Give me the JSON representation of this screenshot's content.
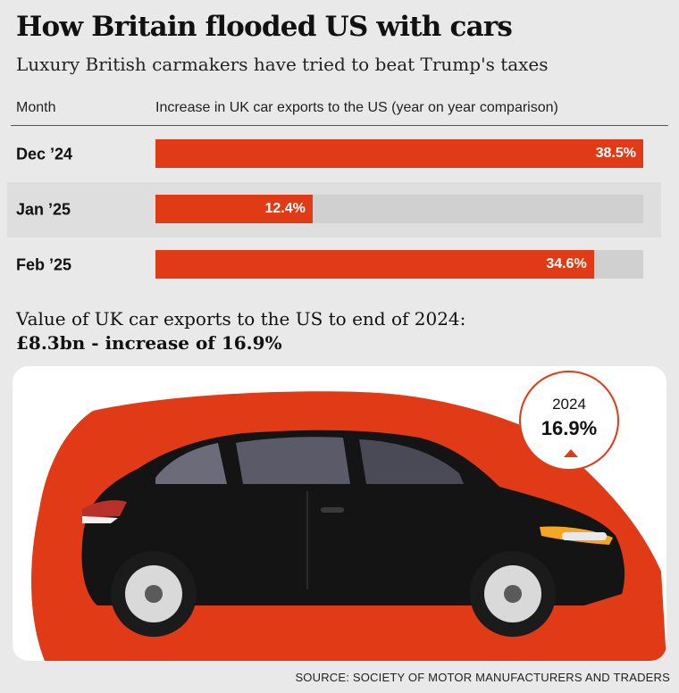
{
  "header": {
    "title": "How Britain flooded US with cars",
    "subtitle": "Luxury British carmakers have tried to beat Trump's taxes"
  },
  "table_header": {
    "month": "Month",
    "value": "Increase in UK car exports to the US (year on year  comparison)"
  },
  "chart_data": {
    "type": "bar",
    "orientation": "horizontal",
    "categories": [
      "Dec ’24",
      "Jan ’25",
      "Feb ’25"
    ],
    "values": [
      38.5,
      12.4,
      34.6
    ],
    "value_labels": [
      "38.5%",
      "12.4%",
      "34.6%"
    ],
    "xlim": [
      0,
      38.5
    ],
    "grid": false,
    "colors": {
      "bar": "#e03a16",
      "track": "#d0d0d0"
    }
  },
  "summary": {
    "line": "Value of UK car exports to the US to end of 2024:",
    "value": "£8.3bn - increase of 16.9%"
  },
  "badge": {
    "year": "2024",
    "value": "16.9%",
    "icon": "up-arrow-icon"
  },
  "illustration": {
    "icon": "car-icon"
  },
  "source": "SOURCE: SOCIETY OF MOTOR MANUFACTURERS AND TRADERS"
}
